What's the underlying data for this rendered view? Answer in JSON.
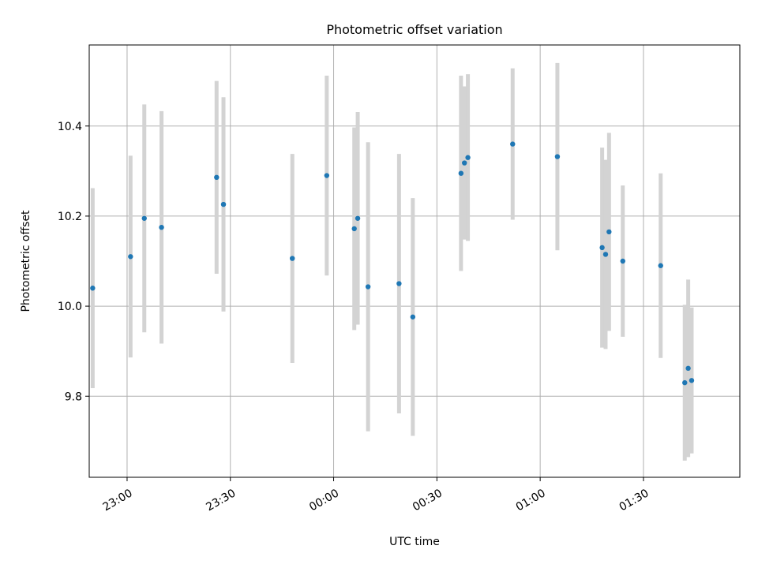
{
  "chart_data": {
    "type": "scatter",
    "title": "Photometric offset variation",
    "xlabel": "UTC time",
    "ylabel": "Photometric offset",
    "xlim": [
      "22:49",
      "01:58"
    ],
    "ylim": [
      9.62,
      10.58
    ],
    "x_ticks": [
      "23:00",
      "23:30",
      "00:00",
      "00:30",
      "01:00",
      "01:30"
    ],
    "y_ticks": [
      9.8,
      10.0,
      10.2,
      10.4
    ],
    "y_tick_labels": [
      "9.8",
      "10.0",
      "10.2",
      "10.4"
    ],
    "grid": true,
    "colors": {
      "point": "#1f77b4",
      "errorbar": "#d3d3d3",
      "grid": "#b0b0b0"
    },
    "points": [
      {
        "t": "22:50",
        "y": 10.04,
        "err": 0.222
      },
      {
        "t": "23:01",
        "y": 10.11,
        "err": 0.224
      },
      {
        "t": "23:05",
        "y": 10.195,
        "err": 0.253
      },
      {
        "t": "23:10",
        "y": 10.175,
        "err": 0.258
      },
      {
        "t": "23:26",
        "y": 10.286,
        "err": 0.214
      },
      {
        "t": "23:28",
        "y": 10.226,
        "err": 0.238
      },
      {
        "t": "23:48",
        "y": 10.106,
        "err": 0.232
      },
      {
        "t": "23:58",
        "y": 10.29,
        "err": 0.222
      },
      {
        "t": "00:06",
        "y": 10.172,
        "err": 0.225
      },
      {
        "t": "00:07",
        "y": 10.195,
        "err": 0.236
      },
      {
        "t": "00:10",
        "y": 10.043,
        "err": 0.321
      },
      {
        "t": "00:19",
        "y": 10.05,
        "err": 0.288
      },
      {
        "t": "00:23",
        "y": 9.976,
        "err": 0.264
      },
      {
        "t": "00:37",
        "y": 10.295,
        "err": 0.217
      },
      {
        "t": "00:38",
        "y": 10.318,
        "err": 0.17
      },
      {
        "t": "00:39",
        "y": 10.33,
        "err": 0.185
      },
      {
        "t": "00:52",
        "y": 10.36,
        "err": 0.168
      },
      {
        "t": "01:05",
        "y": 10.332,
        "err": 0.208
      },
      {
        "t": "01:18",
        "y": 10.13,
        "err": 0.222
      },
      {
        "t": "01:19",
        "y": 10.115,
        "err": 0.21
      },
      {
        "t": "01:20",
        "y": 10.165,
        "err": 0.22
      },
      {
        "t": "01:24",
        "y": 10.1,
        "err": 0.168
      },
      {
        "t": "01:35",
        "y": 10.09,
        "err": 0.205
      },
      {
        "t": "01:42",
        "y": 9.83,
        "err": 0.173
      },
      {
        "t": "01:43",
        "y": 9.862,
        "err": 0.197
      },
      {
        "t": "01:44",
        "y": 9.835,
        "err": 0.162
      }
    ]
  }
}
